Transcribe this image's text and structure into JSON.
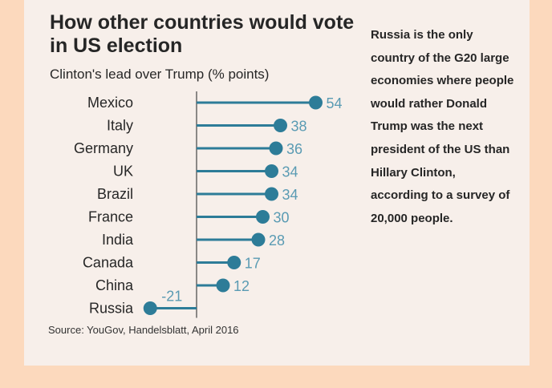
{
  "chart_data": {
    "type": "dot",
    "title": "How other countries would vote in US election",
    "subtitle": "Clinton's lead over Trump (% points)",
    "categories": [
      "Mexico",
      "Italy",
      "Germany",
      "UK",
      "Brazil",
      "France",
      "India",
      "Canada",
      "China",
      "Russia"
    ],
    "values": [
      54,
      38,
      36,
      34,
      34,
      30,
      28,
      17,
      12,
      -21
    ],
    "value_labels": [
      "54",
      "38",
      "36",
      "34",
      "34",
      "30",
      "28",
      "17",
      "12",
      "-21"
    ],
    "color": "#2d7c98",
    "label_color": "#5a9bb3",
    "grid": false,
    "annotation": "Russia is the only country of the G20 large economies where people would rather Donald Trump was the next president of the US than Hillary Clinton, according to a survey of 20,000 people.",
    "source": "Source: YouGov, Handelsblatt, April 2016"
  }
}
